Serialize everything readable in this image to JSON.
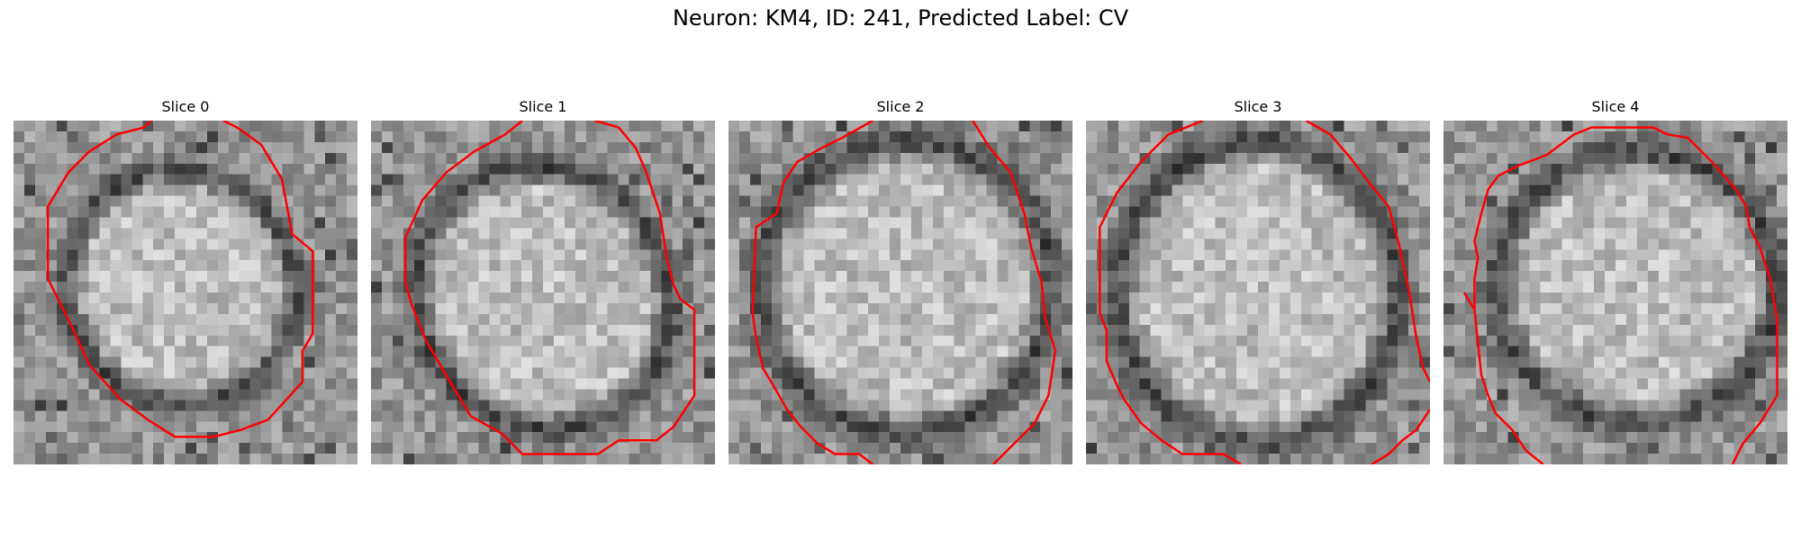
{
  "figure": {
    "title": "Neuron: KM4, ID: 241, Predicted Label: CV"
  },
  "colors": {
    "contour": "#ff0000"
  },
  "slices": [
    {
      "title": "Slice 0"
    },
    {
      "title": "Slice 1"
    },
    {
      "title": "Slice 2"
    },
    {
      "title": "Slice 3"
    },
    {
      "title": "Slice 4"
    }
  ]
}
